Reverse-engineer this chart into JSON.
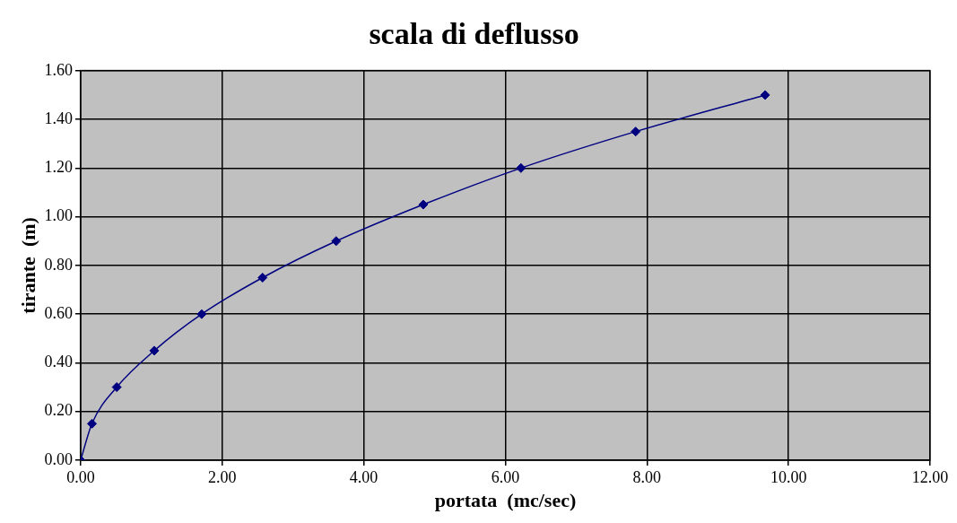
{
  "chart_data": {
    "type": "line",
    "title": "scala di deflusso",
    "xlabel": "portata  (mc/sec)",
    "ylabel": "tirante  (m)",
    "x": [
      0,
      0.16,
      0.51,
      1.04,
      1.71,
      2.57,
      3.61,
      4.84,
      6.22,
      7.84,
      9.67
    ],
    "series": [
      {
        "color": "#000080",
        "values": [
          0,
          0.15,
          0.3,
          0.45,
          0.6,
          0.75,
          0.9,
          1.05,
          1.2,
          1.35,
          1.5
        ]
      }
    ],
    "line_style": "solid",
    "marker": "diamond",
    "grid": true,
    "legend": false,
    "xlim": [
      0,
      12
    ],
    "xticks": [
      {
        "value": 0,
        "label": "0.00"
      },
      {
        "value": 2,
        "label": "2.00"
      },
      {
        "value": 4,
        "label": "4.00"
      },
      {
        "value": 6,
        "label": "6.00"
      },
      {
        "value": 8,
        "label": "8.00"
      },
      {
        "value": 10,
        "label": "10.00"
      },
      {
        "value": 12,
        "label": "12.00"
      }
    ],
    "ylim": [
      0,
      1.6
    ],
    "yticks": [
      {
        "value": 0,
        "label": "0.00"
      },
      {
        "value": 0.2,
        "label": "0.20"
      },
      {
        "value": 0.4,
        "label": "0.40"
      },
      {
        "value": 0.6,
        "label": "0.60"
      },
      {
        "value": 0.8,
        "label": "0.80"
      },
      {
        "value": 1,
        "label": "1.00"
      },
      {
        "value": 1.2,
        "label": "1.20"
      },
      {
        "value": 1.4,
        "label": "1.40"
      },
      {
        "value": 1.6,
        "label": "1.60"
      }
    ]
  }
}
